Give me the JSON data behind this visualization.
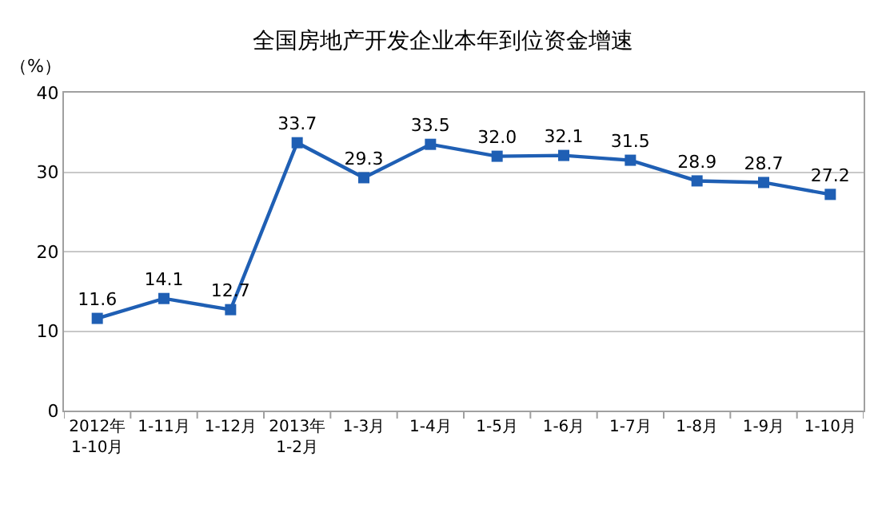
{
  "chart_data": {
    "type": "line",
    "title": "全国房地产开发企业本年到位资金增速",
    "ylabel": "（%）",
    "categories": [
      "2012年\n1-10月",
      "1-11月",
      "1-12月",
      "2013年\n1-2月",
      "1-3月",
      "1-4月",
      "1-5月",
      "1-6月",
      "1-7月",
      "1-8月",
      "1-9月",
      "1-10月"
    ],
    "series": [
      {
        "color": "#1f5fb4",
        "values": [
          11.6,
          14.1,
          12.7,
          33.7,
          29.3,
          33.5,
          32.0,
          32.1,
          31.5,
          28.9,
          28.7,
          27.2
        ]
      }
    ],
    "ylim": [
      0,
      40
    ],
    "yticks": [
      0,
      10,
      20,
      30,
      40
    ],
    "grid": "y",
    "legend": false,
    "marker": "square",
    "line_style": "solid",
    "value_labels": [
      "11.6",
      "14.1",
      "12.7",
      "33.7",
      "29.3",
      "33.5",
      "32.0",
      "32.1",
      "31.5",
      "28.9",
      "28.7",
      "27.2"
    ]
  }
}
